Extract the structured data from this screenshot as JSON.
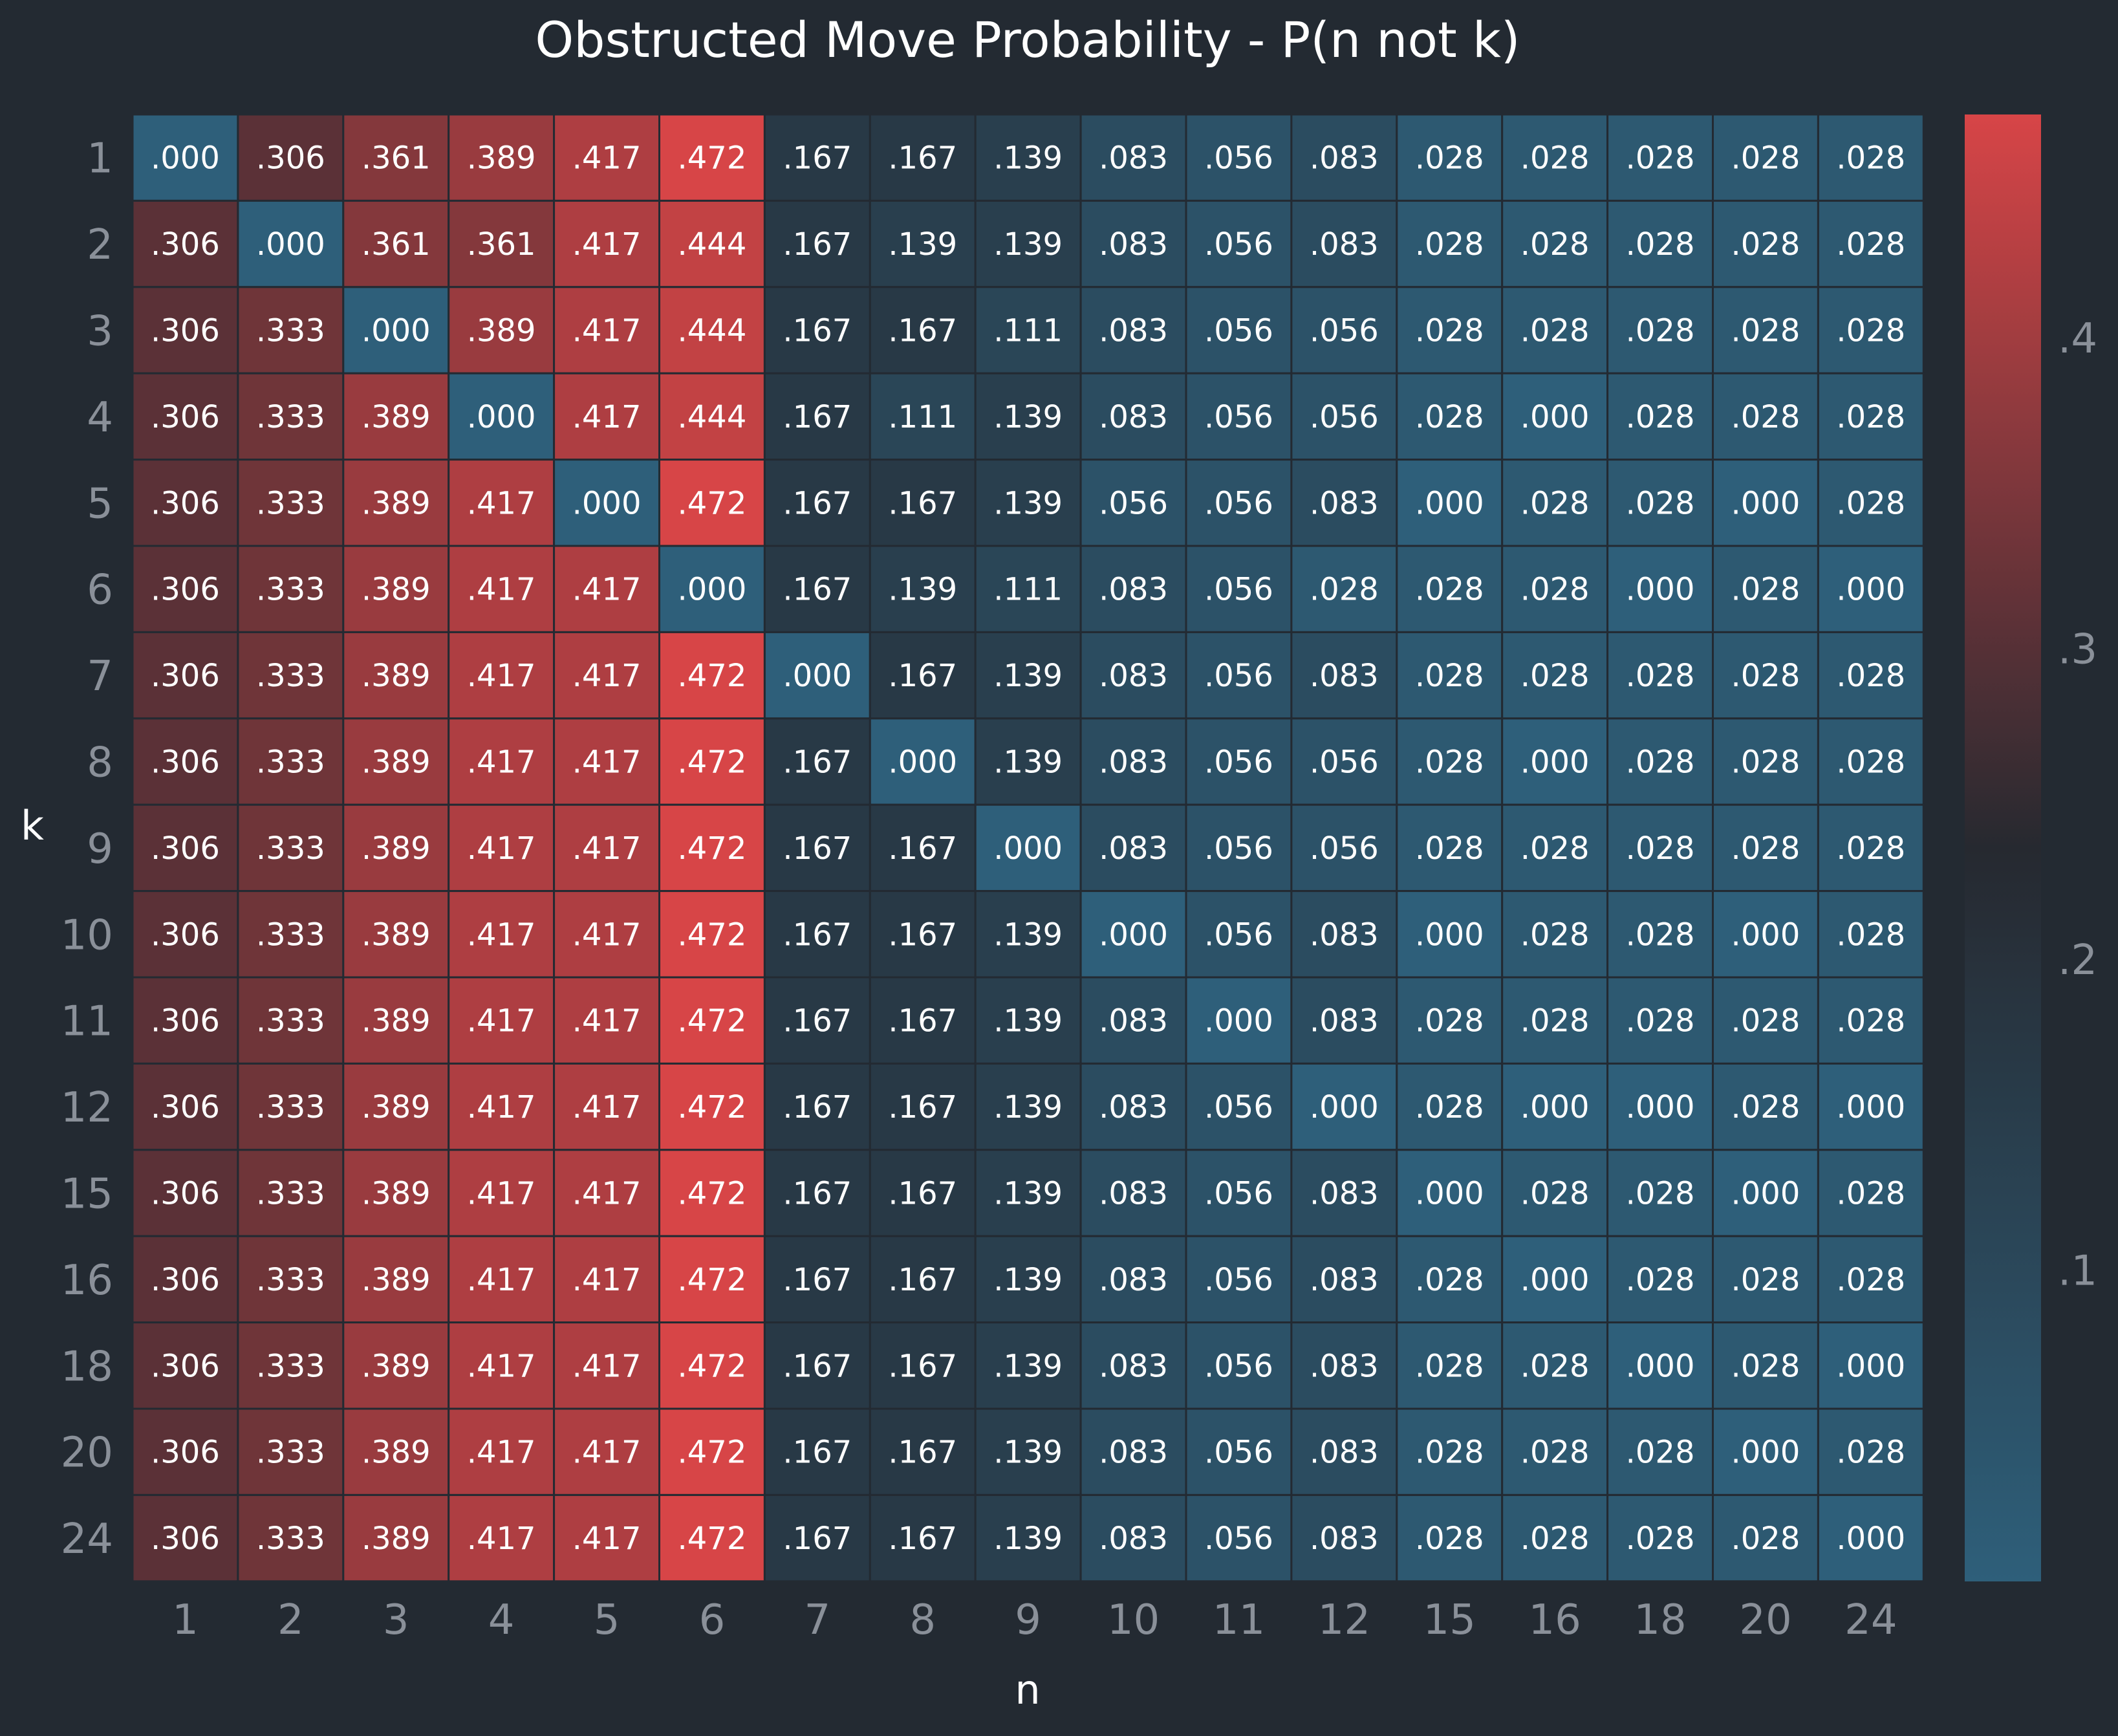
{
  "chart_data": {
    "type": "heatmap",
    "title": "Obstructed Move Probability - P(n not k)",
    "xlabel": "n",
    "ylabel": "k",
    "x_categories": [
      "1",
      "2",
      "3",
      "4",
      "5",
      "6",
      "7",
      "8",
      "9",
      "10",
      "11",
      "12",
      "15",
      "16",
      "18",
      "20",
      "24"
    ],
    "y_categories": [
      "1",
      "2",
      "3",
      "4",
      "5",
      "6",
      "7",
      "8",
      "9",
      "10",
      "11",
      "12",
      "15",
      "16",
      "18",
      "20",
      "24"
    ],
    "values": [
      [
        0.0,
        0.306,
        0.361,
        0.389,
        0.417,
        0.472,
        0.167,
        0.167,
        0.139,
        0.083,
        0.056,
        0.083,
        0.028,
        0.028,
        0.028,
        0.028,
        0.028
      ],
      [
        0.306,
        0.0,
        0.361,
        0.361,
        0.417,
        0.444,
        0.167,
        0.139,
        0.139,
        0.083,
        0.056,
        0.083,
        0.028,
        0.028,
        0.028,
        0.028,
        0.028
      ],
      [
        0.306,
        0.333,
        0.0,
        0.389,
        0.417,
        0.444,
        0.167,
        0.167,
        0.111,
        0.083,
        0.056,
        0.056,
        0.028,
        0.028,
        0.028,
        0.028,
        0.028
      ],
      [
        0.306,
        0.333,
        0.389,
        0.0,
        0.417,
        0.444,
        0.167,
        0.111,
        0.139,
        0.083,
        0.056,
        0.056,
        0.028,
        0.0,
        0.028,
        0.028,
        0.028
      ],
      [
        0.306,
        0.333,
        0.389,
        0.417,
        0.0,
        0.472,
        0.167,
        0.167,
        0.139,
        0.056,
        0.056,
        0.083,
        0.0,
        0.028,
        0.028,
        0.0,
        0.028
      ],
      [
        0.306,
        0.333,
        0.389,
        0.417,
        0.417,
        0.0,
        0.167,
        0.139,
        0.111,
        0.083,
        0.056,
        0.028,
        0.028,
        0.028,
        0.0,
        0.028,
        0.0
      ],
      [
        0.306,
        0.333,
        0.389,
        0.417,
        0.417,
        0.472,
        0.0,
        0.167,
        0.139,
        0.083,
        0.056,
        0.083,
        0.028,
        0.028,
        0.028,
        0.028,
        0.028
      ],
      [
        0.306,
        0.333,
        0.389,
        0.417,
        0.417,
        0.472,
        0.167,
        0.0,
        0.139,
        0.083,
        0.056,
        0.056,
        0.028,
        0.0,
        0.028,
        0.028,
        0.028
      ],
      [
        0.306,
        0.333,
        0.389,
        0.417,
        0.417,
        0.472,
        0.167,
        0.167,
        0.0,
        0.083,
        0.056,
        0.056,
        0.028,
        0.028,
        0.028,
        0.028,
        0.028
      ],
      [
        0.306,
        0.333,
        0.389,
        0.417,
        0.417,
        0.472,
        0.167,
        0.167,
        0.139,
        0.0,
        0.056,
        0.083,
        0.0,
        0.028,
        0.028,
        0.0,
        0.028
      ],
      [
        0.306,
        0.333,
        0.389,
        0.417,
        0.417,
        0.472,
        0.167,
        0.167,
        0.139,
        0.083,
        0.0,
        0.083,
        0.028,
        0.028,
        0.028,
        0.028,
        0.028
      ],
      [
        0.306,
        0.333,
        0.389,
        0.417,
        0.417,
        0.472,
        0.167,
        0.167,
        0.139,
        0.083,
        0.056,
        0.0,
        0.028,
        0.0,
        0.0,
        0.028,
        0.0
      ],
      [
        0.306,
        0.333,
        0.389,
        0.417,
        0.417,
        0.472,
        0.167,
        0.167,
        0.139,
        0.083,
        0.056,
        0.083,
        0.0,
        0.028,
        0.028,
        0.0,
        0.028
      ],
      [
        0.306,
        0.333,
        0.389,
        0.417,
        0.417,
        0.472,
        0.167,
        0.167,
        0.139,
        0.083,
        0.056,
        0.083,
        0.028,
        0.0,
        0.028,
        0.028,
        0.028
      ],
      [
        0.306,
        0.333,
        0.389,
        0.417,
        0.417,
        0.472,
        0.167,
        0.167,
        0.139,
        0.083,
        0.056,
        0.083,
        0.028,
        0.028,
        0.0,
        0.028,
        0.0
      ],
      [
        0.306,
        0.333,
        0.389,
        0.417,
        0.417,
        0.472,
        0.167,
        0.167,
        0.139,
        0.083,
        0.056,
        0.083,
        0.028,
        0.028,
        0.028,
        0.0,
        0.028
      ],
      [
        0.306,
        0.333,
        0.389,
        0.417,
        0.417,
        0.472,
        0.167,
        0.167,
        0.139,
        0.083,
        0.056,
        0.083,
        0.028,
        0.028,
        0.028,
        0.028,
        0.0
      ]
    ],
    "value_format": "leading-dot 3 decimals",
    "color_range": [
      0.0,
      0.472
    ],
    "colormap": {
      "low": "#2e5f7a",
      "mid": "#262930",
      "high": "#d74547"
    },
    "colorbar": {
      "ticks": [
        0.1,
        0.2,
        0.3,
        0.4
      ],
      "tick_labels": [
        ".1",
        ".2",
        ".3",
        ".4"
      ],
      "placement": "right"
    },
    "grid": false
  },
  "colors": {
    "background": "#232a32",
    "title_text": "#ffffff",
    "tick_text": "#8a9099",
    "cell_text": "#ffffff",
    "cell_border": "#232a32"
  }
}
